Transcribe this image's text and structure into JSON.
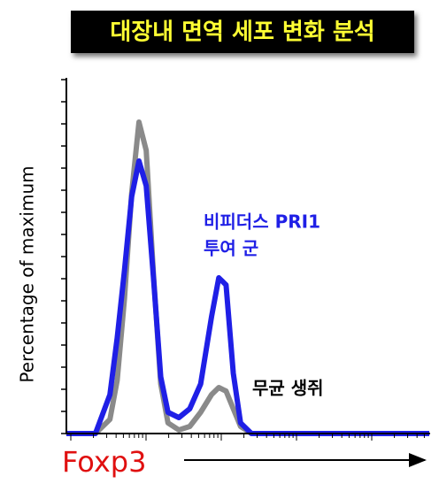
{
  "chart_data": {
    "type": "line",
    "title": "대장내 면역 세포 변화 분석",
    "x_label": "Foxp3",
    "y_label": "Percentage of maximum",
    "x": [
      0,
      8,
      12,
      14,
      16,
      18,
      20,
      22,
      24,
      26,
      28,
      31,
      34,
      37,
      40,
      42,
      44,
      46,
      48,
      51,
      100
    ],
    "xlim": [
      0,
      100
    ],
    "ylim": [
      0,
      100
    ],
    "series": [
      {
        "name": [
          "무균 생쥐"
        ],
        "color": "#8a8a8a",
        "values": [
          0,
          0,
          4,
          15,
          38,
          68,
          88,
          80,
          45,
          14,
          3,
          1,
          2,
          6,
          11,
          13,
          12,
          7,
          2,
          0,
          0
        ]
      },
      {
        "name": [
          "비피더스 PRI1",
          "투여 군"
        ],
        "color": "#1f1fe6",
        "values": [
          0,
          0,
          11,
          27,
          46,
          67,
          77,
          70,
          44,
          16,
          6,
          4.5,
          7,
          14,
          33,
          44,
          42,
          17,
          3,
          0,
          0
        ]
      }
    ]
  }
}
